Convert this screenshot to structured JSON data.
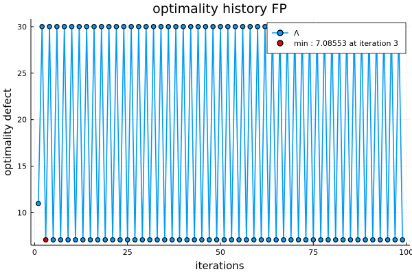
{
  "chart_data": {
    "type": "line",
    "title": "optimality history FP",
    "xlabel": "iterations",
    "ylabel": "optimality defect",
    "xlim": [
      -1,
      101
    ],
    "ylim": [
      6.5,
      30.8
    ],
    "xticks": [
      0,
      25,
      50,
      75,
      100
    ],
    "yticks": [
      10,
      15,
      20,
      25,
      30
    ],
    "grid": true,
    "legend_position": "top-right",
    "series": [
      {
        "name": "Λ",
        "color": "#009af9",
        "marker": "circle",
        "pattern": {
          "n": 99,
          "first": [
            1,
            10.98
          ],
          "high": 30.0,
          "low": 7.08553,
          "high_on": "even",
          "low_on": "odd"
        }
      },
      {
        "name": "min : 7.08553 at iteration 3",
        "color": "#e8000b",
        "marker": "circle",
        "points": [
          [
            3,
            7.08553
          ]
        ]
      }
    ]
  }
}
